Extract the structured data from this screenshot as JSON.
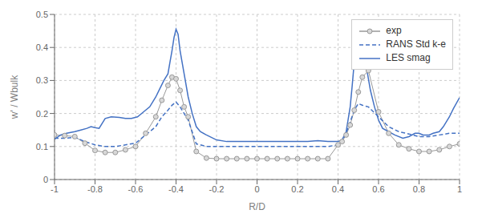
{
  "chart_data": {
    "type": "line",
    "title": "",
    "xlabel": "R/D",
    "ylabel": "w' / Wbulk",
    "xlim": [
      -1,
      1
    ],
    "ylim": [
      0,
      0.5
    ],
    "xticks": [
      -1,
      -0.8,
      -0.6,
      -0.4,
      -0.2,
      0,
      0.2,
      0.4,
      0.6,
      0.8,
      1
    ],
    "yticks": [
      0,
      0.1,
      0.2,
      0.3,
      0.4,
      0.5
    ],
    "grid": true,
    "legend": "upper right",
    "series": [
      {
        "name": "exp",
        "color": "#999999",
        "marker": "o",
        "line_style": "solid",
        "x": [
          -1.0,
          -0.95,
          -0.9,
          -0.85,
          -0.8,
          -0.75,
          -0.7,
          -0.65,
          -0.6,
          -0.55,
          -0.5,
          -0.47,
          -0.44,
          -0.42,
          -0.4,
          -0.38,
          -0.36,
          -0.34,
          -0.3,
          -0.25,
          -0.2,
          -0.15,
          -0.1,
          -0.05,
          0.0,
          0.05,
          0.1,
          0.15,
          0.2,
          0.25,
          0.3,
          0.35,
          0.4,
          0.42,
          0.44,
          0.46,
          0.48,
          0.5,
          0.52,
          0.55,
          0.6,
          0.65,
          0.7,
          0.75,
          0.8,
          0.85,
          0.9,
          0.95,
          1.0
        ],
        "values": [
          0.135,
          0.133,
          0.13,
          0.11,
          0.088,
          0.082,
          0.082,
          0.09,
          0.1,
          0.14,
          0.19,
          0.24,
          0.285,
          0.31,
          0.305,
          0.27,
          0.22,
          0.19,
          0.085,
          0.065,
          0.063,
          0.063,
          0.063,
          0.063,
          0.063,
          0.063,
          0.063,
          0.063,
          0.063,
          0.063,
          0.063,
          0.063,
          0.105,
          0.115,
          0.135,
          0.165,
          0.21,
          0.265,
          0.31,
          0.33,
          0.205,
          0.14,
          0.105,
          0.093,
          0.085,
          0.085,
          0.09,
          0.1,
          0.108
        ]
      },
      {
        "name": "RANS Std k-e",
        "color": "#4472C4",
        "line_style": "dashed",
        "x": [
          -1.0,
          -0.95,
          -0.9,
          -0.85,
          -0.8,
          -0.75,
          -0.7,
          -0.65,
          -0.6,
          -0.55,
          -0.5,
          -0.47,
          -0.44,
          -0.42,
          -0.4,
          -0.38,
          -0.36,
          -0.34,
          -0.3,
          -0.25,
          -0.2,
          -0.15,
          -0.1,
          -0.05,
          0.0,
          0.05,
          0.1,
          0.15,
          0.2,
          0.25,
          0.3,
          0.35,
          0.4,
          0.42,
          0.44,
          0.46,
          0.48,
          0.5,
          0.52,
          0.55,
          0.6,
          0.65,
          0.7,
          0.75,
          0.8,
          0.85,
          0.9,
          0.95,
          1.0
        ],
        "values": [
          0.125,
          0.125,
          0.128,
          0.115,
          0.105,
          0.1,
          0.1,
          0.105,
          0.11,
          0.135,
          0.16,
          0.19,
          0.21,
          0.225,
          0.235,
          0.22,
          0.2,
          0.18,
          0.108,
          0.1,
          0.1,
          0.1,
          0.1,
          0.1,
          0.1,
          0.1,
          0.1,
          0.1,
          0.1,
          0.1,
          0.1,
          0.1,
          0.105,
          0.115,
          0.14,
          0.175,
          0.21,
          0.23,
          0.225,
          0.22,
          0.19,
          0.16,
          0.145,
          0.138,
          0.13,
          0.13,
          0.135,
          0.14,
          0.14
        ]
      },
      {
        "name": "LES smag",
        "color": "#4472C4",
        "line_style": "solid",
        "x": [
          -1.0,
          -0.97,
          -0.94,
          -0.9,
          -0.87,
          -0.84,
          -0.82,
          -0.8,
          -0.78,
          -0.75,
          -0.72,
          -0.68,
          -0.65,
          -0.62,
          -0.59,
          -0.56,
          -0.53,
          -0.5,
          -0.48,
          -0.46,
          -0.44,
          -0.43,
          -0.42,
          -0.41,
          -0.4,
          -0.39,
          -0.38,
          -0.36,
          -0.34,
          -0.32,
          -0.3,
          -0.28,
          -0.25,
          -0.2,
          -0.15,
          -0.1,
          -0.05,
          0.0,
          0.05,
          0.1,
          0.15,
          0.2,
          0.25,
          0.3,
          0.35,
          0.38,
          0.4,
          0.42,
          0.44,
          0.46,
          0.47,
          0.48,
          0.49,
          0.5,
          0.51,
          0.52,
          0.54,
          0.56,
          0.58,
          0.6,
          0.62,
          0.65,
          0.68,
          0.72,
          0.75,
          0.78,
          0.8,
          0.82,
          0.85,
          0.87,
          0.9,
          0.92,
          0.95,
          0.97,
          1.0
        ],
        "values": [
          0.122,
          0.135,
          0.14,
          0.145,
          0.15,
          0.155,
          0.16,
          0.157,
          0.155,
          0.185,
          0.19,
          0.188,
          0.185,
          0.185,
          0.19,
          0.205,
          0.22,
          0.25,
          0.275,
          0.3,
          0.32,
          0.355,
          0.39,
          0.43,
          0.455,
          0.44,
          0.39,
          0.32,
          0.25,
          0.2,
          0.16,
          0.145,
          0.135,
          0.12,
          0.115,
          0.115,
          0.115,
          0.115,
          0.115,
          0.115,
          0.115,
          0.115,
          0.115,
          0.118,
          0.115,
          0.115,
          0.115,
          0.12,
          0.145,
          0.22,
          0.285,
          0.355,
          0.41,
          0.445,
          0.44,
          0.41,
          0.34,
          0.27,
          0.22,
          0.18,
          0.155,
          0.145,
          0.135,
          0.125,
          0.13,
          0.14,
          0.14,
          0.135,
          0.135,
          0.14,
          0.145,
          0.16,
          0.19,
          0.215,
          0.248
        ]
      }
    ]
  }
}
